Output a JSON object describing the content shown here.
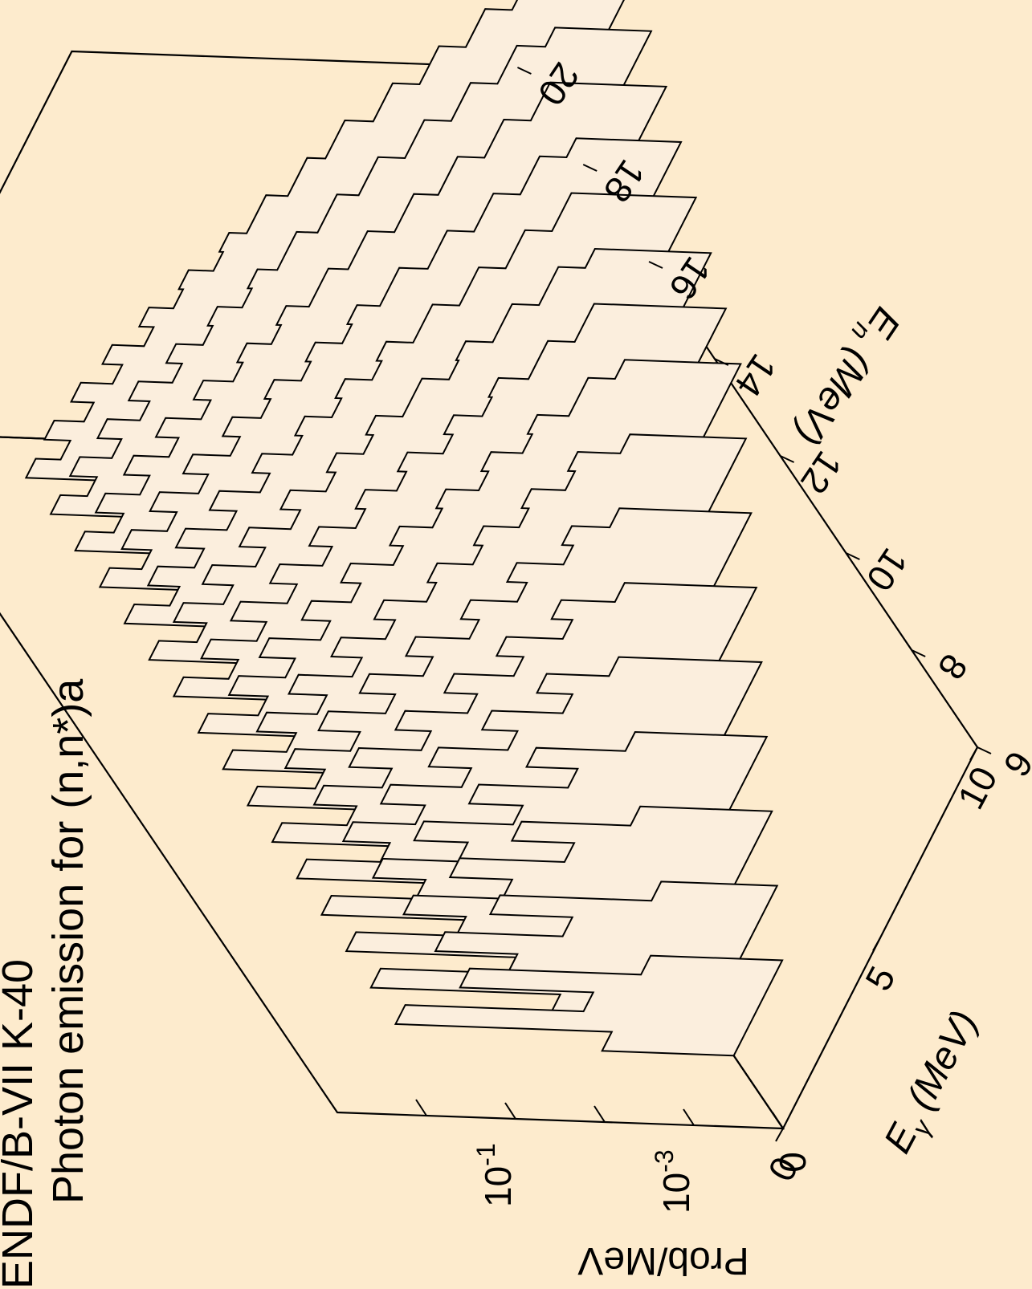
{
  "chart_data": {
    "type": "3d-stepped-histogram",
    "title": "ENDF/B-VII K-40",
    "subtitle": "Photon emission for (n,n*)a",
    "x_axis": {
      "label_main": "E",
      "label_sub": "γ",
      "label_rest": " (MeV)",
      "range": [
        0,
        10
      ],
      "ticks": [
        0,
        5,
        10
      ]
    },
    "y_axis": {
      "label_main": "E",
      "label_sub": "n",
      "label_rest": " (MeV)",
      "range": [
        6,
        20
      ],
      "ticks": [
        6,
        8,
        10,
        12,
        14,
        16,
        18,
        20
      ]
    },
    "z_axis": {
      "label": "Prob/MeV",
      "scale": "log",
      "range": [
        0.0001,
        10
      ],
      "tick_labels": [
        {
          "value": 0.001,
          "base": "10",
          "exp": "-3"
        },
        {
          "value": 0.1,
          "base": "10",
          "exp": "-1"
        }
      ],
      "minor_ticks": [
        0.01,
        1
      ]
    },
    "bins": [
      0,
      0.5,
      1,
      1.5,
      2,
      2.5,
      3,
      3.5,
      4,
      4.5,
      5,
      5.5,
      6,
      6.5,
      7,
      7.5,
      8,
      8.5,
      9,
      9.5,
      10,
      10.5,
      11,
      11.5,
      12,
      12.5,
      13,
      13.5,
      14
    ],
    "series": [
      {
        "en": 7.5,
        "values": [
          0.003,
          0.8,
          0.008,
          0.25,
          0.003
        ]
      },
      {
        "en": 8.25,
        "values": [
          0.006,
          0.8,
          0.03,
          0.25,
          0.012,
          0.1,
          0.002
        ]
      },
      {
        "en": 9.0,
        "values": [
          0.01,
          0.8,
          0.06,
          0.3,
          0.03,
          0.15,
          0.01,
          0.05,
          0.003
        ]
      },
      {
        "en": 9.75,
        "values": [
          0.015,
          0.8,
          0.09,
          0.35,
          0.05,
          0.2,
          0.02,
          0.08,
          0.008,
          0.03,
          0.003
        ]
      },
      {
        "en": 10.5,
        "values": [
          0.02,
          0.8,
          0.12,
          0.4,
          0.08,
          0.25,
          0.04,
          0.12,
          0.02,
          0.05,
          0.008,
          0.02,
          0.004
        ]
      },
      {
        "en": 11.25,
        "values": [
          0.025,
          0.8,
          0.15,
          0.45,
          0.1,
          0.3,
          0.06,
          0.15,
          0.03,
          0.07,
          0.015,
          0.03,
          0.007,
          0.012,
          0.003
        ]
      },
      {
        "en": 12.0,
        "values": [
          0.03,
          0.8,
          0.18,
          0.5,
          0.12,
          0.35,
          0.08,
          0.2,
          0.05,
          0.1,
          0.025,
          0.04,
          0.012,
          0.02,
          0.006,
          0.008,
          0.003
        ]
      },
      {
        "en": 12.75,
        "values": [
          0.035,
          0.8,
          0.2,
          0.55,
          0.15,
          0.4,
          0.1,
          0.22,
          0.07,
          0.12,
          0.04,
          0.05,
          0.02,
          0.025,
          0.01,
          0.012,
          0.005,
          0.006,
          0.002
        ]
      },
      {
        "en": 13.5,
        "values": [
          0.04,
          0.8,
          0.22,
          0.6,
          0.18,
          0.45,
          0.12,
          0.25,
          0.09,
          0.15,
          0.05,
          0.07,
          0.03,
          0.035,
          0.015,
          0.018,
          0.008,
          0.009,
          0.004,
          0.004,
          0.002
        ]
      },
      {
        "en": 14.25,
        "values": [
          0.045,
          0.8,
          0.25,
          0.65,
          0.2,
          0.5,
          0.15,
          0.3,
          0.1,
          0.18,
          0.07,
          0.09,
          0.04,
          0.05,
          0.02,
          0.025,
          0.012,
          0.013,
          0.006,
          0.006,
          0.003,
          0.003
        ]
      },
      {
        "en": 15.0,
        "values": [
          0.05,
          0.8,
          0.3,
          0.7,
          0.25,
          0.55,
          0.18,
          0.35,
          0.12,
          0.2,
          0.08,
          0.1,
          0.05,
          0.06,
          0.03,
          0.03,
          0.015,
          0.016,
          0.008,
          0.008,
          0.004,
          0.004,
          0.002
        ]
      },
      {
        "en": 15.75,
        "values": [
          0.06,
          0.8,
          0.32,
          0.72,
          0.28,
          0.58,
          0.2,
          0.4,
          0.14,
          0.22,
          0.1,
          0.12,
          0.06,
          0.07,
          0.035,
          0.04,
          0.02,
          0.02,
          0.01,
          0.01,
          0.005,
          0.005,
          0.0025,
          0.0025
        ]
      },
      {
        "en": 16.5,
        "values": [
          0.07,
          0.8,
          0.35,
          0.75,
          0.3,
          0.6,
          0.22,
          0.42,
          0.16,
          0.25,
          0.12,
          0.14,
          0.07,
          0.08,
          0.04,
          0.045,
          0.025,
          0.025,
          0.012,
          0.012,
          0.006,
          0.006,
          0.003,
          0.003,
          0.0015
        ]
      },
      {
        "en": 17.25,
        "values": [
          0.08,
          0.8,
          0.38,
          0.78,
          0.32,
          0.62,
          0.25,
          0.45,
          0.18,
          0.28,
          0.13,
          0.15,
          0.08,
          0.09,
          0.05,
          0.05,
          0.03,
          0.03,
          0.015,
          0.015,
          0.008,
          0.008,
          0.004,
          0.004,
          0.002,
          0.002
        ]
      },
      {
        "en": 18.0,
        "values": [
          0.09,
          0.8,
          0.4,
          0.8,
          0.35,
          0.65,
          0.28,
          0.48,
          0.2,
          0.3,
          0.15,
          0.17,
          0.09,
          0.1,
          0.06,
          0.06,
          0.035,
          0.035,
          0.02,
          0.02,
          0.01,
          0.01,
          0.005,
          0.005,
          0.0025,
          0.0025,
          0.0012
        ]
      },
      {
        "en": 18.75,
        "values": [
          0.1,
          0.8,
          0.42,
          0.82,
          0.38,
          0.68,
          0.3,
          0.5,
          0.22,
          0.32,
          0.17,
          0.19,
          0.1,
          0.11,
          0.07,
          0.07,
          0.04,
          0.04,
          0.025,
          0.025,
          0.012,
          0.012,
          0.006,
          0.006,
          0.003,
          0.003,
          0.0015,
          0.0012
        ]
      }
    ],
    "grid": false,
    "legend": "none"
  }
}
